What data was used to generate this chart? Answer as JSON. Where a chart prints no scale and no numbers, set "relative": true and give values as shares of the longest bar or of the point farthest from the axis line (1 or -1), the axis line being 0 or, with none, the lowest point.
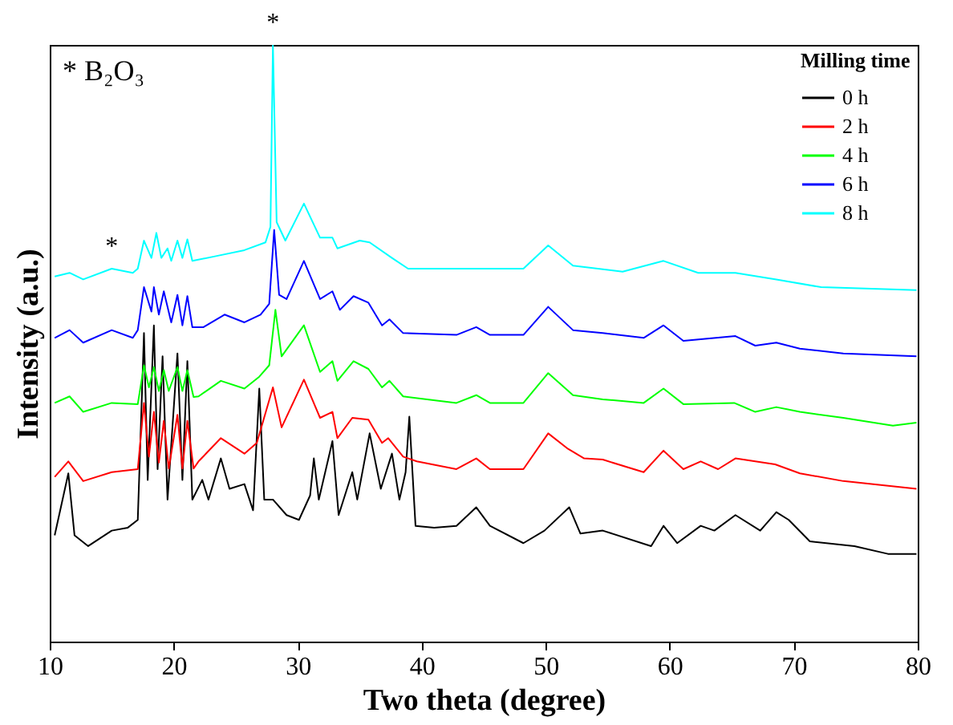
{
  "chart_data": {
    "type": "line",
    "xlabel": "Two theta (degree)",
    "ylabel": "Intensity (a.u.)",
    "legend_title": "Milling time",
    "legend": "top right",
    "relative": true,
    "grid": false,
    "line_style": "solid",
    "marker": "none",
    "xlim": [
      10,
      80
    ],
    "xticks": [
      10,
      20,
      30,
      40,
      50,
      60,
      70,
      80
    ],
    "annotations": [
      "* B₂O₃",
      {
        "text": "*",
        "x": 15,
        "y": 0.625
      },
      {
        "text": "*",
        "x": 28,
        "y": 1.0
      }
    ],
    "series": [
      {
        "name": "0 h",
        "color": "#000000",
        "x": [
          10.4,
          11.5,
          12,
          13.1,
          15,
          16.3,
          17.1,
          17.6,
          17.9,
          18.4,
          18.7,
          19.1,
          19.5,
          20.3,
          20.7,
          21.1,
          21.5,
          22.3,
          22.8,
          23.8,
          24.5,
          25.7,
          26.4,
          26.9,
          27.3,
          28,
          29.1,
          30.1,
          31,
          31.3,
          31.7,
          32.8,
          33.3,
          34.4,
          34.8,
          35.8,
          36.7,
          37.6,
          38.2,
          38.7,
          39,
          39.5,
          41,
          42.8,
          44.4,
          45.5,
          48.2,
          49.9,
          51.9,
          52.8,
          54.6,
          58.5,
          59.5,
          60.6,
          62.5,
          63.6,
          65.3,
          67.3,
          68.6,
          69.6,
          71.3,
          74.9,
          77.6,
          79.9
        ],
        "values": [
          0.178,
          0.282,
          0.178,
          0.16,
          0.186,
          0.191,
          0.204,
          0.517,
          0.271,
          0.53,
          0.289,
          0.478,
          0.238,
          0.483,
          0.271,
          0.47,
          0.238,
          0.271,
          0.238,
          0.307,
          0.256,
          0.264,
          0.22,
          0.424,
          0.238,
          0.238,
          0.212,
          0.204,
          0.245,
          0.307,
          0.238,
          0.336,
          0.212,
          0.284,
          0.238,
          0.349,
          0.256,
          0.315,
          0.238,
          0.284,
          0.377,
          0.194,
          0.191,
          0.194,
          0.225,
          0.194,
          0.165,
          0.186,
          0.225,
          0.181,
          0.186,
          0.16,
          0.194,
          0.165,
          0.194,
          0.186,
          0.212,
          0.186,
          0.217,
          0.204,
          0.168,
          0.16,
          0.147,
          0.147
        ]
      },
      {
        "name": "2 h",
        "color": "#ff0000",
        "x": [
          10.4,
          11.5,
          12.7,
          15,
          17.1,
          17.6,
          18.0,
          18.4,
          18.8,
          19.2,
          19.6,
          20.3,
          20.7,
          21.1,
          21.6,
          22,
          23.8,
          25.7,
          26.7,
          28,
          28.7,
          30.5,
          31.8,
          32.8,
          33.2,
          34.4,
          35.7,
          36.8,
          37.3,
          38.5,
          39.6,
          42.8,
          44.4,
          45.5,
          48.2,
          50.2,
          51.8,
          53.1,
          54.6,
          57.9,
          59.5,
          61.1,
          62.5,
          63.9,
          65.3,
          68.5,
          70.5,
          74,
          79.9
        ],
        "values": [
          0.276,
          0.302,
          0.269,
          0.284,
          0.289,
          0.4,
          0.31,
          0.385,
          0.3,
          0.37,
          0.29,
          0.38,
          0.29,
          0.37,
          0.29,
          0.302,
          0.341,
          0.315,
          0.333,
          0.426,
          0.359,
          0.439,
          0.375,
          0.385,
          0.341,
          0.375,
          0.372,
          0.333,
          0.341,
          0.31,
          0.302,
          0.289,
          0.307,
          0.289,
          0.289,
          0.349,
          0.323,
          0.307,
          0.305,
          0.284,
          0.32,
          0.289,
          0.302,
          0.289,
          0.307,
          0.297,
          0.282,
          0.269,
          0.256
        ]
      },
      {
        "name": "4 h",
        "color": "#00ff00",
        "x": [
          10.4,
          11.6,
          12.7,
          15,
          17.1,
          17.6,
          18.0,
          18.4,
          18.8,
          19.2,
          19.6,
          20.3,
          20.7,
          21.1,
          21.6,
          22,
          23.8,
          25.7,
          26.9,
          27.7,
          28.2,
          28.7,
          30.5,
          31.8,
          32.8,
          33.2,
          34.5,
          35.7,
          36.8,
          37.4,
          38.5,
          42.8,
          44.4,
          45.5,
          48.2,
          50.2,
          52.2,
          54.6,
          57.9,
          59.5,
          61.1,
          65.2,
          66.9,
          68.6,
          70.5,
          74,
          78,
          79.9
        ],
        "values": [
          0.4,
          0.411,
          0.385,
          0.4,
          0.398,
          0.463,
          0.426,
          0.46,
          0.42,
          0.455,
          0.42,
          0.46,
          0.42,
          0.455,
          0.41,
          0.411,
          0.437,
          0.424,
          0.444,
          0.463,
          0.556,
          0.478,
          0.53,
          0.452,
          0.47,
          0.437,
          0.47,
          0.457,
          0.426,
          0.437,
          0.411,
          0.4,
          0.413,
          0.4,
          0.4,
          0.45,
          0.413,
          0.406,
          0.4,
          0.424,
          0.398,
          0.4,
          0.385,
          0.393,
          0.385,
          0.375,
          0.362,
          0.367
        ]
      },
      {
        "name": "6 h",
        "color": "#0000ff",
        "x": [
          10.4,
          11.6,
          12.7,
          15,
          16.7,
          17.1,
          17.6,
          18.2,
          18.4,
          18.8,
          19.2,
          19.8,
          20.3,
          20.7,
          21.1,
          21.5,
          22.4,
          24.1,
          25.7,
          27,
          27.7,
          28.1,
          28.5,
          29.1,
          30.5,
          31.8,
          32.8,
          33.4,
          34.5,
          35.7,
          36.8,
          37.4,
          38.5,
          42.8,
          44.4,
          45.5,
          48.2,
          50.2,
          52.2,
          54.6,
          57.9,
          59.5,
          61.1,
          65.3,
          66.9,
          68.6,
          70.5,
          74,
          79.9
        ],
        "values": [
          0.509,
          0.522,
          0.501,
          0.522,
          0.509,
          0.522,
          0.594,
          0.553,
          0.594,
          0.548,
          0.587,
          0.535,
          0.581,
          0.53,
          0.579,
          0.527,
          0.527,
          0.548,
          0.535,
          0.548,
          0.566,
          0.69,
          0.581,
          0.574,
          0.638,
          0.574,
          0.587,
          0.556,
          0.579,
          0.568,
          0.53,
          0.54,
          0.517,
          0.514,
          0.527,
          0.514,
          0.514,
          0.561,
          0.522,
          0.517,
          0.509,
          0.53,
          0.504,
          0.512,
          0.496,
          0.501,
          0.491,
          0.483,
          0.478
        ]
      },
      {
        "name": "8 h",
        "color": "#00ffff",
        "x": [
          10.4,
          11.6,
          12.7,
          15,
          16.7,
          17.1,
          17.6,
          18.2,
          18.6,
          19.0,
          19.5,
          19.8,
          20.3,
          20.7,
          21.1,
          21.5,
          23.4,
          25.7,
          27.4,
          27.8,
          28.0,
          28.3,
          29.0,
          30.5,
          31.8,
          32.8,
          33.2,
          35,
          35.8,
          37.6,
          38.9,
          42.8,
          45.5,
          48.2,
          50.2,
          52.2,
          56.2,
          59.5,
          62.3,
          65.3,
          68.6,
          72.2,
          79.9
        ],
        "values": [
          0.612,
          0.618,
          0.607,
          0.625,
          0.618,
          0.625,
          0.672,
          0.643,
          0.685,
          0.643,
          0.659,
          0.638,
          0.672,
          0.643,
          0.674,
          0.638,
          0.646,
          0.656,
          0.669,
          0.695,
          1.0,
          0.703,
          0.672,
          0.734,
          0.677,
          0.677,
          0.659,
          0.672,
          0.669,
          0.643,
          0.625,
          0.625,
          0.625,
          0.625,
          0.664,
          0.63,
          0.62,
          0.638,
          0.618,
          0.618,
          0.607,
          0.594,
          0.589
        ]
      }
    ]
  }
}
